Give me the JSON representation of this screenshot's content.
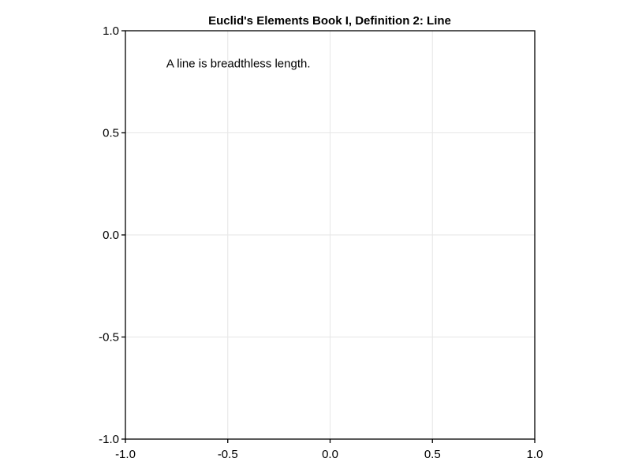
{
  "chart_data": {
    "type": "scatter",
    "title": "Euclid's Elements Book I, Definition 2: Line",
    "xlabel": "",
    "ylabel": "",
    "xlim": [
      -1.0,
      1.0
    ],
    "ylim": [
      -1.0,
      1.0
    ],
    "x_ticks": [
      -1.0,
      -0.5,
      0.0,
      0.5,
      1.0
    ],
    "y_ticks": [
      -1.0,
      -0.5,
      0.0,
      0.5,
      1.0
    ],
    "x_tick_labels": [
      "-1.0",
      "-0.5",
      "0.0",
      "0.5",
      "1.0"
    ],
    "y_tick_labels": [
      "-1.0",
      "-0.5",
      "0.0",
      "0.5",
      "1.0"
    ],
    "grid": true,
    "series": [],
    "annotations": [
      {
        "text": "A line is breadthless length.",
        "x": -0.8,
        "y": 0.82
      }
    ],
    "colors": {
      "axis": "#000000",
      "grid": "#e6e6e6",
      "background": "#ffffff"
    }
  }
}
